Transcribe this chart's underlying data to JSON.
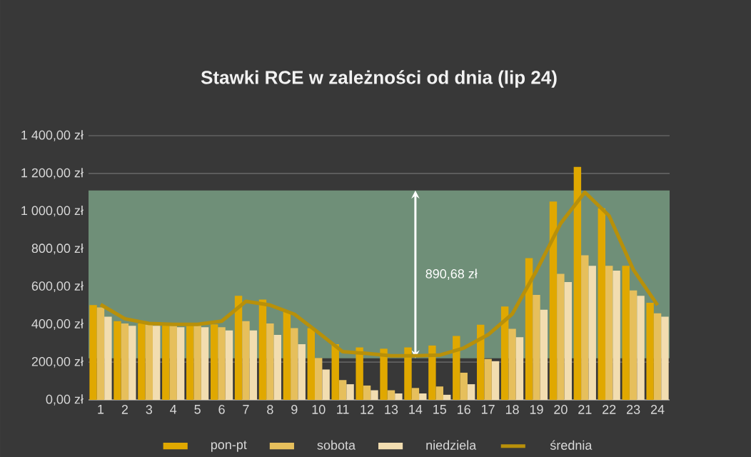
{
  "chart_data": {
    "type": "bar",
    "title": "Stawki RCE w zależności od dnia (lip 24)",
    "categories": [
      "1",
      "2",
      "3",
      "4",
      "5",
      "6",
      "7",
      "8",
      "9",
      "10",
      "11",
      "12",
      "13",
      "14",
      "15",
      "16",
      "17",
      "18",
      "19",
      "20",
      "21",
      "22",
      "23",
      "24"
    ],
    "series": [
      {
        "name": "pon-pt",
        "color": "#e0a800",
        "values": [
          502,
          417,
          405,
          400,
          400,
          400,
          551,
          532,
          466,
          380,
          295,
          278,
          271,
          278,
          288,
          339,
          398,
          495,
          751,
          1051,
          1234,
          1015,
          710,
          515
        ]
      },
      {
        "name": "sobota",
        "color": "#e6bf5c",
        "values": [
          490,
          405,
          400,
          393,
          393,
          385,
          417,
          405,
          380,
          222,
          105,
          76,
          51,
          63,
          71,
          144,
          217,
          376,
          556,
          668,
          766,
          710,
          580,
          459
        ]
      },
      {
        "name": "niedziela",
        "color": "#f2ddb0",
        "values": [
          441,
          393,
          393,
          385,
          385,
          368,
          368,
          344,
          295,
          161,
          83,
          51,
          34,
          34,
          27,
          83,
          205,
          332,
          478,
          624,
          710,
          685,
          551,
          441
        ]
      },
      {
        "name": "średnia",
        "type": "line",
        "color": "#b8900a",
        "values": [
          505,
          430,
          405,
          400,
          400,
          417,
          522,
          502,
          454,
          356,
          255,
          246,
          234,
          234,
          237,
          275,
          345,
          455,
          684,
          935,
          1100,
          975,
          690,
          502
        ]
      }
    ],
    "ylim": [
      0,
      1400
    ],
    "yticks": [
      {
        "value": 0,
        "label": "0,00 zł"
      },
      {
        "value": 200,
        "label": "200,00 zł"
      },
      {
        "value": 400,
        "label": "400,00 zł"
      },
      {
        "value": 600,
        "label": "600,00 zł"
      },
      {
        "value": 800,
        "label": "800,00 zł"
      },
      {
        "value": 1000,
        "label": "1 000,00 zł"
      },
      {
        "value": 1200,
        "label": "1 200,00 zł"
      },
      {
        "value": 1400,
        "label": "1 400,00 zł"
      }
    ],
    "bands": [
      {
        "axis": "y",
        "from": 220,
        "to": 1110,
        "label": "890,68 zł",
        "color": "#6f8f78"
      }
    ],
    "grid": "y",
    "legend": "bottom"
  }
}
